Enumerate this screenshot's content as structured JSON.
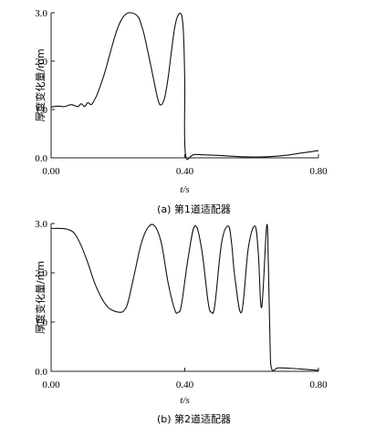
{
  "chart_data": [
    {
      "type": "line",
      "caption": "(a) 第1道适配器",
      "xlabel": "t/s",
      "ylabel": "厚度变化量/mm",
      "xlim": [
        0,
        0.8
      ],
      "ylim": [
        0,
        3.0
      ],
      "xticks": [
        "0.00",
        "0.40",
        "0.80"
      ],
      "yticks": [
        "0.0",
        "1.0",
        "2.0",
        "3.0"
      ],
      "grid": false,
      "series": [
        {
          "x": [
            0.0,
            0.02,
            0.04,
            0.06,
            0.08,
            0.09,
            0.1,
            0.11,
            0.12,
            0.13,
            0.14,
            0.16,
            0.18,
            0.2,
            0.22,
            0.24,
            0.26,
            0.27,
            0.28,
            0.3,
            0.32,
            0.33,
            0.34,
            0.35,
            0.36,
            0.37,
            0.38,
            0.39,
            0.395,
            0.398,
            0.4,
            0.402,
            0.43,
            0.5,
            0.58,
            0.64,
            0.7,
            0.75,
            0.8
          ],
          "y": [
            1.05,
            1.07,
            1.06,
            1.1,
            1.06,
            1.12,
            1.06,
            1.14,
            1.1,
            1.2,
            1.35,
            1.75,
            2.25,
            2.7,
            2.95,
            3.0,
            2.92,
            2.75,
            2.5,
            1.85,
            1.2,
            1.1,
            1.25,
            1.65,
            2.2,
            2.7,
            2.95,
            2.96,
            2.7,
            2.2,
            1.5,
            0.08,
            0.07,
            0.05,
            0.02,
            0.02,
            0.05,
            0.1,
            0.15
          ]
        }
      ]
    },
    {
      "type": "line",
      "caption": "(b) 第2道适配器",
      "xlabel": "t/s",
      "ylabel": "厚度变化量/mm",
      "xlim": [
        0,
        0.8
      ],
      "ylim": [
        0,
        3.0
      ],
      "xticks": [
        "0.00",
        "0.40",
        "0.80"
      ],
      "yticks": [
        "0.0",
        "1.0",
        "2.0",
        "3.0"
      ],
      "grid": false,
      "series": [
        {
          "x": [
            0.0,
            0.03,
            0.05,
            0.07,
            0.09,
            0.11,
            0.13,
            0.15,
            0.17,
            0.19,
            0.21,
            0.22,
            0.23,
            0.25,
            0.27,
            0.29,
            0.31,
            0.33,
            0.35,
            0.37,
            0.38,
            0.39,
            0.41,
            0.43,
            0.45,
            0.47,
            0.48,
            0.49,
            0.51,
            0.53,
            0.54,
            0.55,
            0.57,
            0.59,
            0.61,
            0.62,
            0.63,
            0.645,
            0.65,
            0.655,
            0.66,
            0.68,
            0.72,
            0.76,
            0.8
          ],
          "y": [
            2.9,
            2.9,
            2.88,
            2.8,
            2.55,
            2.2,
            1.8,
            1.5,
            1.3,
            1.22,
            1.2,
            1.25,
            1.4,
            2.0,
            2.6,
            2.92,
            2.95,
            2.6,
            1.8,
            1.25,
            1.2,
            1.35,
            2.3,
            2.95,
            2.5,
            1.4,
            1.2,
            1.35,
            2.6,
            2.95,
            2.6,
            1.9,
            1.2,
            2.5,
            2.95,
            2.4,
            1.3,
            2.95,
            2.2,
            0.6,
            0.05,
            0.07,
            0.06,
            0.04,
            0.02
          ]
        }
      ]
    }
  ]
}
